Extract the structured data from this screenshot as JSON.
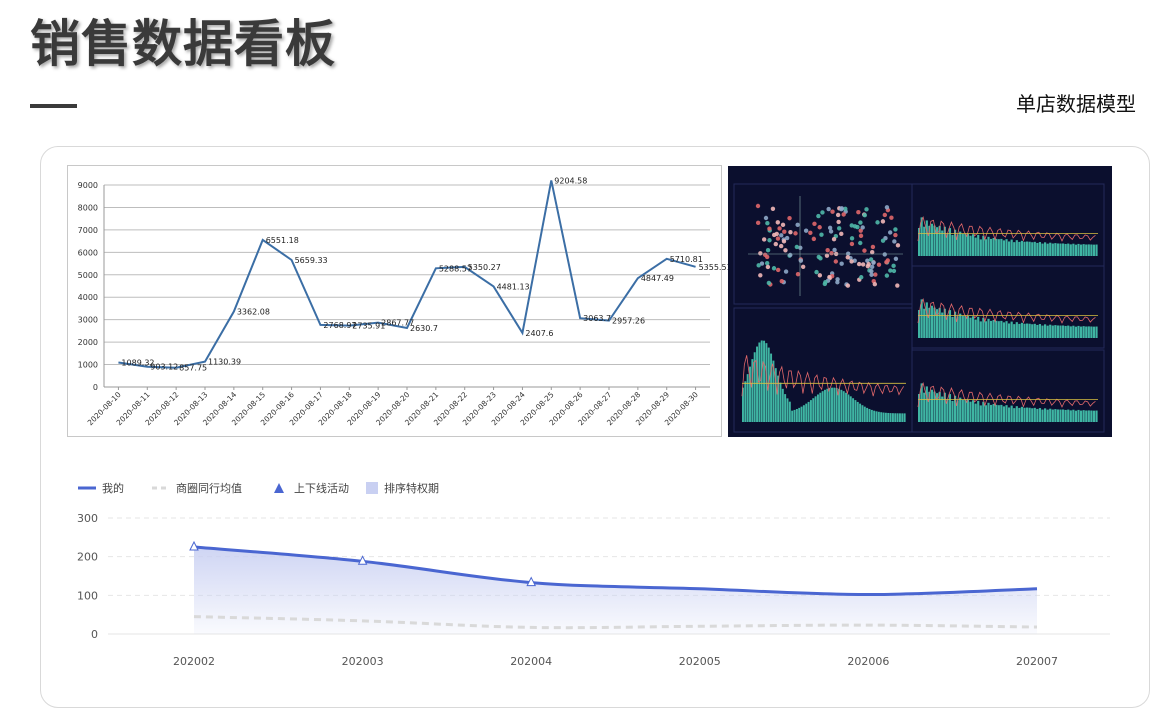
{
  "page": {
    "title": "销售数据看板",
    "subtitle": "单店数据模型"
  },
  "colors": {
    "line_primary": "#3b6ea5",
    "line_mine": "#4a66d1",
    "line_peer": "#d9d9d9",
    "area_fill": "#c9d0f2",
    "dashboard_bg": "#0b0f2e"
  },
  "chart_data": [
    {
      "type": "line",
      "categories": [
        "2020-08-10",
        "2020-08-11",
        "2020-08-12",
        "2020-08-13",
        "2020-08-14",
        "2020-08-15",
        "2020-08-16",
        "2020-08-17",
        "2020-08-18",
        "2020-08-19",
        "2020-08-20",
        "2020-08-21",
        "2020-08-22",
        "2020-08-23",
        "2020-08-24",
        "2020-08-25",
        "2020-08-26",
        "2020-08-27",
        "2020-08-28",
        "2020-08-29",
        "2020-08-30"
      ],
      "values": [
        1089.32,
        903.12,
        857.75,
        1130.39,
        3362.08,
        6551.18,
        5659.33,
        2768.97,
        2735.91,
        2867.77,
        2630.7,
        5288.57,
        5350.27,
        4481.13,
        2407.6,
        9204.58,
        3063.7,
        2957.26,
        4847.49,
        5710.81,
        5355.51
      ],
      "data_labels": [
        "1089.32",
        "903.12",
        "857.75",
        "1130.39",
        "3362.08",
        "6551.18",
        "5659.33",
        "2768.97",
        "2735.91",
        "2867.77",
        "2630.7",
        "5288.57",
        "5350.27",
        "4481.13",
        "2407.6",
        "9204.58",
        "3063.7",
        "2957.26",
        "4847.49",
        "5710.81",
        "5355.51"
      ],
      "ylim": [
        0,
        9000
      ],
      "yticks": [
        "0",
        "1000",
        "2000",
        "3000",
        "4000",
        "5000",
        "6000",
        "7000",
        "8000",
        "9000"
      ],
      "grid": true
    },
    {
      "type": "line",
      "legend": [
        "我的",
        "商圈同行均值",
        "上下线活动",
        "排序特权期"
      ],
      "categories": [
        "202002",
        "202003",
        "202004",
        "202005",
        "202006",
        "202007"
      ],
      "series": [
        {
          "name": "我的",
          "values": [
            225,
            188,
            133,
            117,
            102,
            117
          ]
        },
        {
          "name": "商圈同行均值",
          "values": [
            45,
            34,
            17,
            20,
            23,
            18
          ]
        }
      ],
      "markers": {
        "name": "上下线活动",
        "x": [
          "202002",
          "202003",
          "202004"
        ]
      },
      "ylim": [
        0,
        300
      ],
      "yticks": [
        "0",
        "100",
        "200",
        "300"
      ],
      "grid": true,
      "legend_position": "top-left"
    }
  ]
}
